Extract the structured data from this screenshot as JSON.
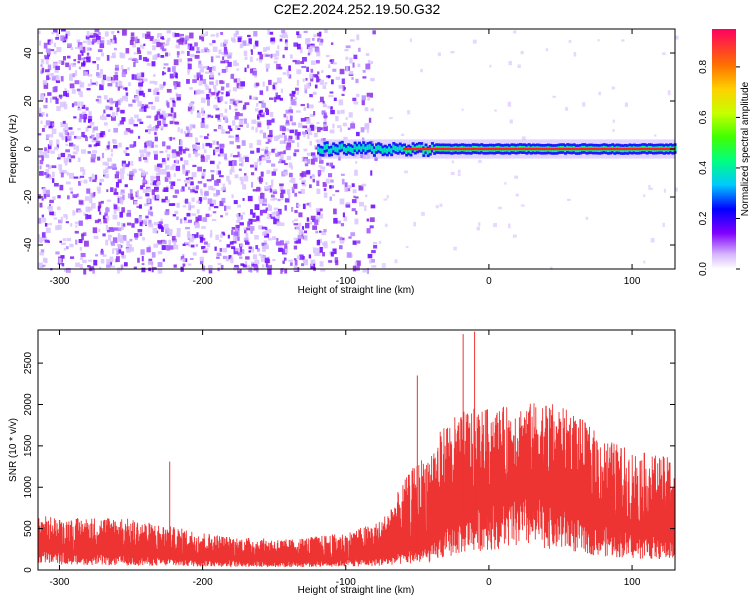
{
  "title": "C2E2.2024.252.19.50.G32",
  "chart_data": [
    {
      "type": "heatmap",
      "xlabel": "Height of straight line (km)",
      "ylabel": "Frequency (Hz)",
      "xlim": [
        -315,
        130
      ],
      "ylim": [
        -50,
        50
      ],
      "x_ticks": [
        -300,
        -200,
        -100,
        0,
        100
      ],
      "y_ticks": [
        -40,
        -20,
        0,
        20,
        40
      ],
      "colorbar": {
        "label": "Normalized spectral amplitude",
        "range": [
          0,
          0.95
        ],
        "ticks": [
          0.0,
          0.2,
          0.4,
          0.6,
          0.8
        ],
        "placement": "right"
      },
      "regions": {
        "dense_noise_x": [
          -315,
          -80
        ],
        "faint_noise_x": [
          -80,
          -70
        ],
        "signal_line_x": [
          -120,
          130
        ],
        "signal_line_y": 0
      }
    },
    {
      "type": "line",
      "xlabel": "Height of straight line (km)",
      "ylabel": "SNR (10 * v/v)",
      "xlim": [
        -315,
        130
      ],
      "ylim": [
        0,
        2900
      ],
      "x_ticks": [
        -300,
        -200,
        -100,
        0,
        100
      ],
      "y_ticks": [
        0,
        500,
        1000,
        1500,
        2000,
        2500
      ],
      "color": "#ee3333",
      "envelope": {
        "x": [
          -315,
          -300,
          -260,
          -220,
          -180,
          -140,
          -100,
          -75,
          -55,
          -40,
          -30,
          -15,
          0,
          20,
          40,
          60,
          80,
          100,
          130
        ],
        "base": [
          250,
          220,
          180,
          150,
          120,
          110,
          130,
          160,
          250,
          300,
          500,
          700,
          800,
          900,
          850,
          700,
          550,
          450,
          400
        ],
        "top": [
          680,
          620,
          650,
          520,
          400,
          370,
          450,
          600,
          1200,
          1500,
          1800,
          1950,
          1950,
          2000,
          2050,
          1900,
          1600,
          1450,
          1350
        ]
      },
      "spikes": [
        {
          "x": -223,
          "y": 1310
        },
        {
          "x": -18,
          "y": 2850
        },
        {
          "x": -10,
          "y": 2880
        },
        {
          "x": -50,
          "y": 2350
        }
      ]
    }
  ]
}
